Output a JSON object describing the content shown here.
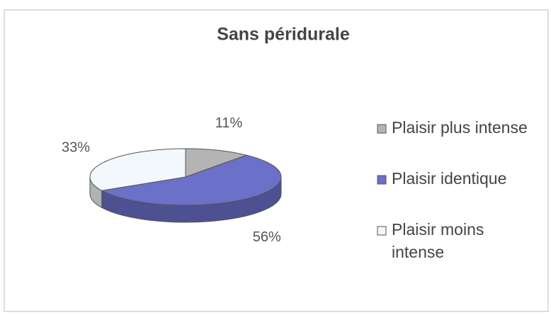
{
  "chart_data": {
    "type": "pie",
    "title": "Sans péridurale",
    "categories": [
      "Plaisir plus intense",
      "Plaisir identique",
      "Plaisir moins intense"
    ],
    "values": [
      11,
      56,
      33
    ],
    "value_labels": [
      "11%",
      "56%",
      "33%"
    ],
    "colors": [
      "#b4b4b4",
      "#6b70c9",
      "#f2f8fb"
    ],
    "legend": "right"
  }
}
